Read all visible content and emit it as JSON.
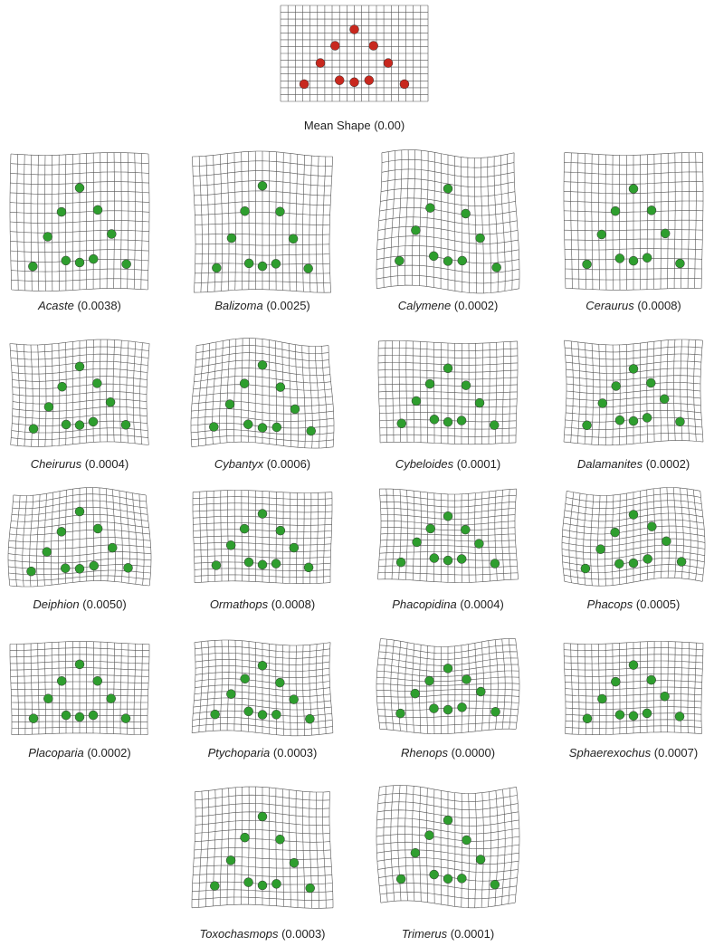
{
  "mean": {
    "name": "Mean Shape",
    "score": "(0.00)"
  },
  "panels": [
    {
      "name": "Acaste",
      "score": "(0.0038)"
    },
    {
      "name": "Balizoma",
      "score": "(0.0025)"
    },
    {
      "name": "Calymene",
      "score": "(0.0002)"
    },
    {
      "name": "Ceraurus",
      "score": "(0.0008)"
    },
    {
      "name": "Cheirurus",
      "score": "(0.0004)"
    },
    {
      "name": "Cybantyx",
      "score": "(0.0006)"
    },
    {
      "name": "Cybeloides",
      "score": "(0.0001)"
    },
    {
      "name": "Dalamanites",
      "score": "(0.0002)"
    },
    {
      "name": "Deiphion",
      "score": "(0.0050)"
    },
    {
      "name": "Ormathops",
      "score": "(0.0008)"
    },
    {
      "name": "Phacopidina",
      "score": "(0.0004)"
    },
    {
      "name": "Phacops",
      "score": "(0.0005)"
    },
    {
      "name": "Placoparia",
      "score": "(0.0002)"
    },
    {
      "name": "Ptychoparia",
      "score": "(0.0003)"
    },
    {
      "name": "Rhenops",
      "score": "(0.0000)"
    },
    {
      "name": "Sphaerexochus",
      "score": "(0.0007)"
    },
    {
      "name": "Toxochasmops",
      "score": "(0.0003)"
    },
    {
      "name": "Trimerus",
      "score": "(0.0001)"
    }
  ]
}
